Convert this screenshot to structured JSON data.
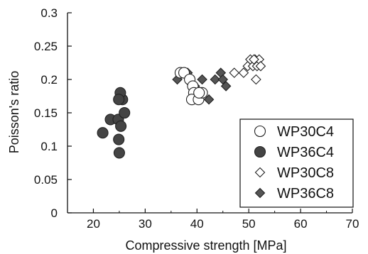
{
  "chart_data": {
    "type": "scatter",
    "xlabel": "Compressive strength [MPa]",
    "ylabel": "Poisson's ratio",
    "xlim": [
      15,
      70
    ],
    "ylim": [
      0,
      0.3
    ],
    "xticks": [
      "20",
      "30",
      "40",
      "50",
      "60",
      "70"
    ],
    "yticks": [
      "0",
      "0.05",
      "0.1",
      "0.15",
      "0.2",
      "0.25",
      "0.3"
    ],
    "grid": false,
    "legend_position": "bottom-right",
    "series": [
      {
        "name": "WP30C4",
        "marker": "circle-open",
        "color": "#333333",
        "x": [
          36.8,
          37.5,
          38.6,
          39.2,
          39.4,
          39.0,
          40.3,
          41.0,
          40.4
        ],
        "y": [
          0.21,
          0.21,
          0.2,
          0.19,
          0.18,
          0.17,
          0.17,
          0.18,
          0.18
        ]
      },
      {
        "name": "WP36C4",
        "marker": "circle-filled",
        "color": "#444444",
        "x": [
          21.8,
          23.3,
          24.8,
          25.3,
          24.9,
          25.0,
          26.0,
          25.6,
          25.2,
          24.9
        ],
        "y": [
          0.12,
          0.14,
          0.14,
          0.13,
          0.11,
          0.09,
          0.15,
          0.17,
          0.18,
          0.17
        ]
      },
      {
        "name": "WP30C8",
        "marker": "diamond-open",
        "color": "#333333",
        "x": [
          47.2,
          49.0,
          49.8,
          50.3,
          50.8,
          51.2,
          51.6,
          52.0,
          52.3,
          51.4,
          51.0
        ],
        "y": [
          0.21,
          0.21,
          0.22,
          0.23,
          0.22,
          0.23,
          0.22,
          0.23,
          0.22,
          0.2,
          0.23
        ]
      },
      {
        "name": "WP36C8",
        "marker": "diamond-filled",
        "color": "#555555",
        "x": [
          36.2,
          37.4,
          38.2,
          39.6,
          40.1,
          41.0,
          42.3,
          43.5,
          44.6,
          45.0,
          45.6
        ],
        "y": [
          0.2,
          0.21,
          0.21,
          0.19,
          0.17,
          0.2,
          0.17,
          0.2,
          0.21,
          0.2,
          0.19
        ]
      }
    ]
  }
}
